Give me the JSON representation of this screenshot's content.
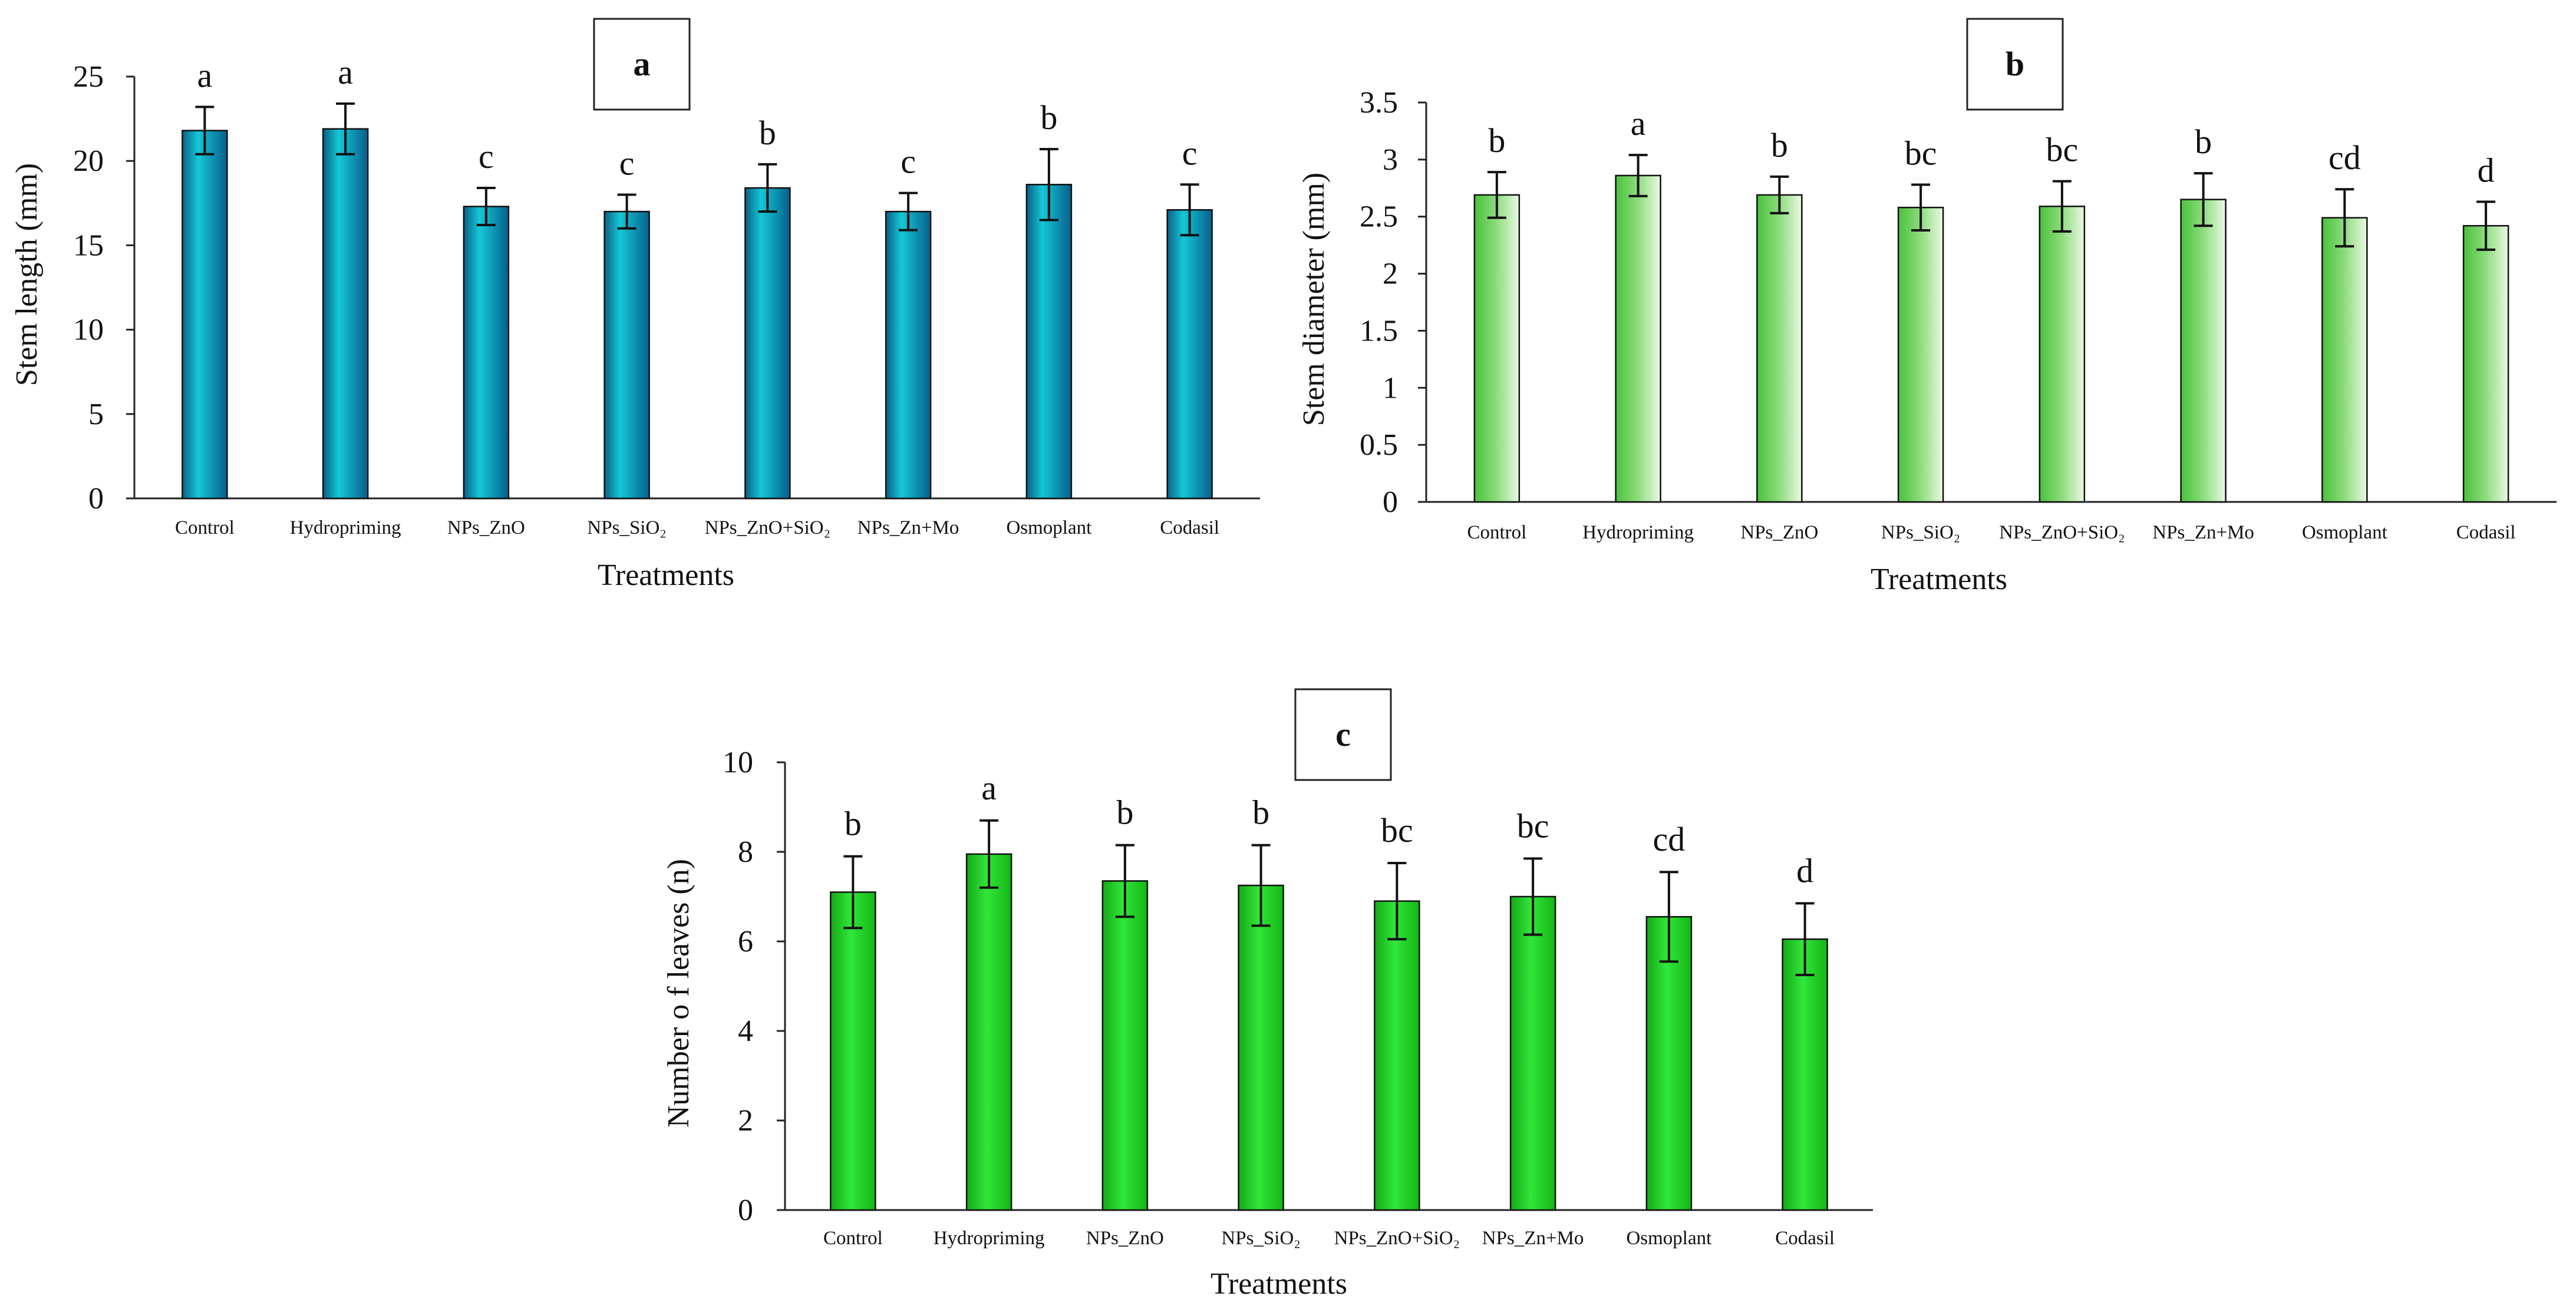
{
  "chart_data": [
    {
      "panel": "a",
      "type": "bar",
      "xlabel": "Treatments",
      "ylabel": "Stem length (mm)",
      "ylim": [
        0,
        25
      ],
      "yticks": [
        "0",
        "5",
        "10",
        "15",
        "20",
        "25"
      ],
      "categories": [
        "Control",
        "Hydropriming",
        "NPs_ZnO",
        "NPs_SiO₂",
        "NPs_ZnO+SiO₂",
        "NPs_Zn+Mo",
        "Osmoplant",
        "Codasil"
      ],
      "values": [
        21.8,
        21.9,
        17.3,
        17.0,
        18.4,
        17.0,
        18.6,
        17.1
      ],
      "errors": [
        1.4,
        1.5,
        1.1,
        1.0,
        1.4,
        1.1,
        2.1,
        1.5
      ],
      "letters": [
        "a",
        "a",
        "c",
        "c",
        "b",
        "c",
        "b",
        "c"
      ],
      "bar_color": "#0a7fa3"
    },
    {
      "panel": "b",
      "type": "bar",
      "xlabel": "Treatments",
      "ylabel": "Stem diameter (mm)",
      "ylim": [
        0,
        3.5
      ],
      "yticks": [
        "0",
        "0.5",
        "1",
        "1.5",
        "2",
        "2.5",
        "3",
        "3.5"
      ],
      "categories": [
        "Control",
        "Hydropriming",
        "NPs_ZnO",
        "NPs_SiO₂",
        "NPs_ZnO+SiO₂",
        "NPs_Zn+Mo",
        "Osmoplant",
        "Codasil"
      ],
      "values": [
        2.69,
        2.86,
        2.69,
        2.58,
        2.59,
        2.65,
        2.49,
        2.42
      ],
      "errors": [
        0.2,
        0.18,
        0.16,
        0.2,
        0.22,
        0.23,
        0.25,
        0.21
      ],
      "letters": [
        "b",
        "a",
        "b",
        "bc",
        "bc",
        "b",
        "cd",
        "d"
      ],
      "bar_color": "#5fcf4f"
    },
    {
      "panel": "c",
      "type": "bar",
      "xlabel": "Treatments",
      "ylabel": "Number o f  leaves (n)",
      "ylim": [
        0,
        10
      ],
      "yticks": [
        "0",
        "2",
        "4",
        "6",
        "8",
        "10"
      ],
      "categories": [
        "Control",
        "Hydropriming",
        "NPs_ZnO",
        "NPs_SiO₂",
        "NPs_ZnO+SiO₂",
        "NPs_Zn+Mo",
        "Osmoplant",
        "Codasil"
      ],
      "values": [
        7.1,
        7.95,
        7.35,
        7.25,
        6.9,
        7.0,
        6.55,
        6.05
      ],
      "errors": [
        0.8,
        0.75,
        0.8,
        0.9,
        0.85,
        0.85,
        1.0,
        0.8
      ],
      "letters": [
        "b",
        "a",
        "b",
        "b",
        "bc",
        "bc",
        "cd",
        "d"
      ],
      "bar_color": "#1fc41f"
    }
  ]
}
